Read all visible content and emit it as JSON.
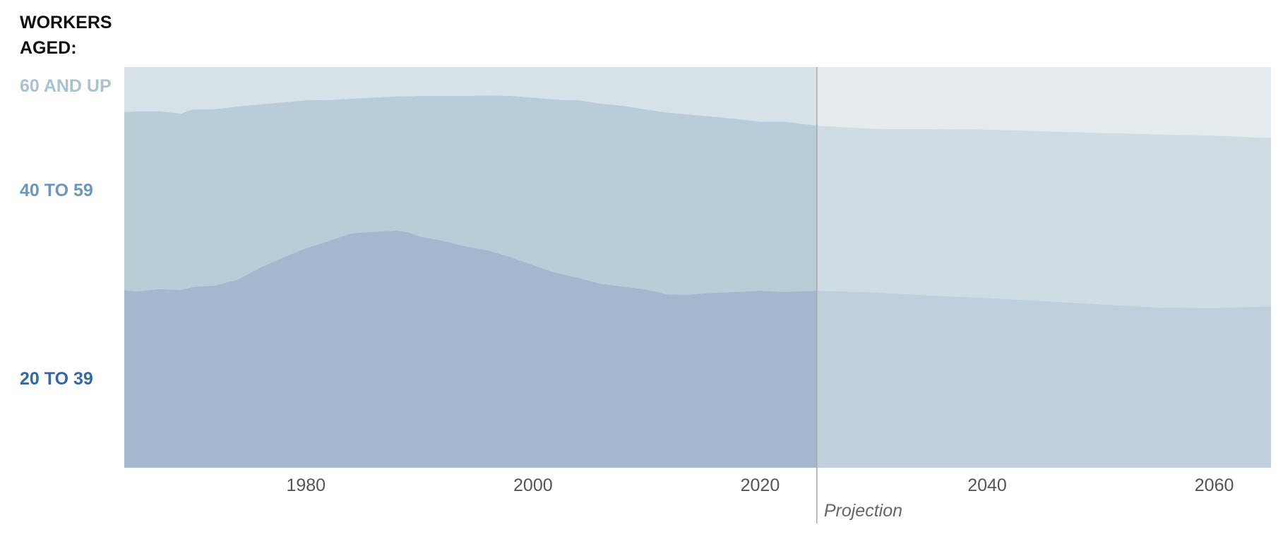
{
  "legend": {
    "title_line1": "WORKERS",
    "title_line2": "AGED:"
  },
  "colors": {
    "label_60_up": "#a8c3cf",
    "label_40_59": "#6b96bd",
    "label_20_39": "#2e6aa7",
    "hist_60_up": "#d6e2e8",
    "hist_40_59": "#b9cdd8",
    "hist_20_39": "#a3b8cd",
    "proj_60_up": "#e4ecef",
    "proj_40_59": "#cfdce4",
    "proj_20_39": "#bfcfdc",
    "divider": "#aaaaaa"
  },
  "chart_data": {
    "type": "area",
    "stacked": true,
    "normalized": true,
    "x_ticks": [
      "1980",
      "2000",
      "2020",
      "2040",
      "2060"
    ],
    "xlim": [
      1964,
      2065
    ],
    "ylim": [
      0,
      100
    ],
    "projection_start": 2025,
    "projection_label": "Projection",
    "series": [
      {
        "name": "20 TO 39",
        "points": [
          [
            1964,
            44.3
          ],
          [
            1965,
            44.0
          ],
          [
            1967,
            44.6
          ],
          [
            1969,
            44.4
          ],
          [
            1970,
            45.1
          ],
          [
            1972,
            45.5
          ],
          [
            1974,
            47.0
          ],
          [
            1976,
            50.0
          ],
          [
            1978,
            52.5
          ],
          [
            1980,
            54.8
          ],
          [
            1982,
            56.6
          ],
          [
            1984,
            58.5
          ],
          [
            1986,
            58.9
          ],
          [
            1988,
            59.2
          ],
          [
            1989,
            58.8
          ],
          [
            1990,
            57.7
          ],
          [
            1992,
            56.7
          ],
          [
            1994,
            55.3
          ],
          [
            1996,
            54.3
          ],
          [
            1998,
            52.6
          ],
          [
            2000,
            50.6
          ],
          [
            2002,
            48.7
          ],
          [
            2004,
            47.4
          ],
          [
            2006,
            45.9
          ],
          [
            2008,
            45.2
          ],
          [
            2010,
            44.5
          ],
          [
            2012,
            43.2
          ],
          [
            2014,
            43.3
          ],
          [
            2016,
            43.7
          ],
          [
            2018,
            43.9
          ],
          [
            2020,
            44.2
          ],
          [
            2022,
            43.9
          ],
          [
            2025,
            44.2
          ],
          [
            2030,
            43.8
          ],
          [
            2035,
            43.0
          ],
          [
            2040,
            42.4
          ],
          [
            2045,
            41.6
          ],
          [
            2050,
            40.8
          ],
          [
            2055,
            40.0
          ],
          [
            2060,
            39.9
          ],
          [
            2065,
            40.3
          ]
        ]
      },
      {
        "name": "40 TO 59",
        "points": [
          [
            1964,
            44.5
          ],
          [
            1965,
            44.9
          ],
          [
            1967,
            44.4
          ],
          [
            1969,
            44.0
          ],
          [
            1970,
            44.3
          ],
          [
            1972,
            44.0
          ],
          [
            1974,
            43.2
          ],
          [
            1976,
            40.7
          ],
          [
            1978,
            38.7
          ],
          [
            1980,
            36.9
          ],
          [
            1982,
            35.2
          ],
          [
            1984,
            33.6
          ],
          [
            1986,
            33.5
          ],
          [
            1988,
            33.5
          ],
          [
            1989,
            33.9
          ],
          [
            1990,
            35.1
          ],
          [
            1992,
            36.1
          ],
          [
            1994,
            37.5
          ],
          [
            1996,
            38.6
          ],
          [
            1998,
            40.2
          ],
          [
            2000,
            41.8
          ],
          [
            2002,
            43.2
          ],
          [
            2004,
            44.3
          ],
          [
            2006,
            45.0
          ],
          [
            2008,
            45.1
          ],
          [
            2010,
            44.9
          ],
          [
            2012,
            45.4
          ],
          [
            2014,
            44.8
          ],
          [
            2016,
            43.9
          ],
          [
            2018,
            43.1
          ],
          [
            2020,
            42.2
          ],
          [
            2022,
            42.5
          ],
          [
            2025,
            41.2
          ],
          [
            2030,
            40.8
          ],
          [
            2035,
            41.5
          ],
          [
            2040,
            42.0
          ],
          [
            2045,
            42.4
          ],
          [
            2050,
            42.8
          ],
          [
            2055,
            43.2
          ],
          [
            2060,
            43.0
          ],
          [
            2065,
            42.0
          ]
        ]
      },
      {
        "name": "60 AND UP",
        "points": [
          [
            1964,
            11.2
          ],
          [
            1965,
            11.1
          ],
          [
            1967,
            11.0
          ],
          [
            1969,
            11.6
          ],
          [
            1970,
            10.6
          ],
          [
            1972,
            10.5
          ],
          [
            1974,
            9.8
          ],
          [
            1976,
            9.3
          ],
          [
            1978,
            8.8
          ],
          [
            1980,
            8.3
          ],
          [
            1982,
            8.2
          ],
          [
            1984,
            7.9
          ],
          [
            1986,
            7.6
          ],
          [
            1988,
            7.3
          ],
          [
            1989,
            7.3
          ],
          [
            1990,
            7.2
          ],
          [
            1992,
            7.2
          ],
          [
            1994,
            7.2
          ],
          [
            1996,
            7.1
          ],
          [
            1998,
            7.2
          ],
          [
            2000,
            7.6
          ],
          [
            2002,
            8.1
          ],
          [
            2004,
            8.3
          ],
          [
            2006,
            9.1
          ],
          [
            2008,
            9.7
          ],
          [
            2010,
            10.6
          ],
          [
            2012,
            11.4
          ],
          [
            2014,
            11.9
          ],
          [
            2016,
            12.4
          ],
          [
            2018,
            13.0
          ],
          [
            2020,
            13.6
          ],
          [
            2022,
            13.6
          ],
          [
            2025,
            14.6
          ],
          [
            2030,
            15.4
          ],
          [
            2035,
            15.5
          ],
          [
            2040,
            15.6
          ],
          [
            2045,
            16.0
          ],
          [
            2050,
            16.4
          ],
          [
            2055,
            16.8
          ],
          [
            2060,
            17.1
          ],
          [
            2065,
            17.7
          ]
        ]
      }
    ]
  }
}
